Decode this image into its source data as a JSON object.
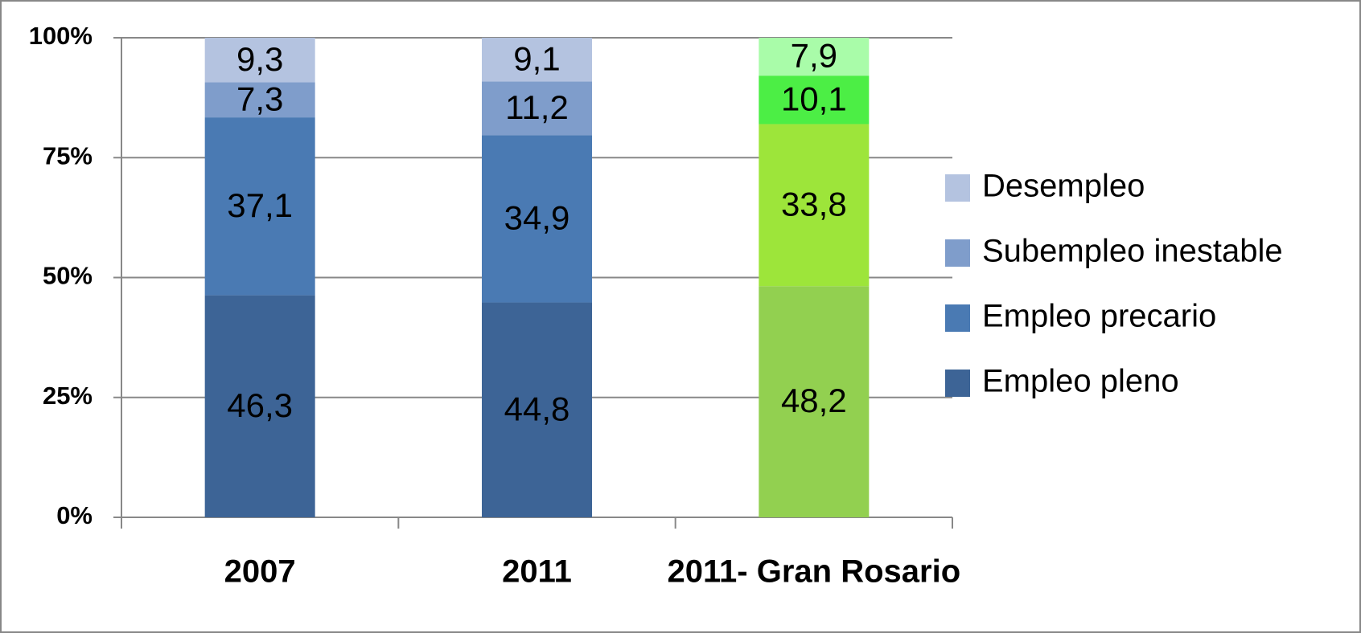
{
  "chart_data": {
    "type": "stacked_bar",
    "categories": [
      "2007",
      "2011",
      "2011- Gran Rosario"
    ],
    "series": [
      {
        "name": "Empleo pleno",
        "color": "#3d6496",
        "colors": [
          "#3d6496",
          "#3d6496",
          "#92d050"
        ],
        "values": [
          46.3,
          44.8,
          48.2
        ],
        "value_labels": [
          "46,3",
          "44,8",
          "48,2"
        ]
      },
      {
        "name": "Empleo precario",
        "color": "#4a7ab3",
        "colors": [
          "#4a7ab3",
          "#4a7ab3",
          "#9de53a"
        ],
        "values": [
          37.1,
          34.9,
          33.8
        ],
        "value_labels": [
          "37,1",
          "34,9",
          "33,8"
        ]
      },
      {
        "name": "Subempleo inestable",
        "color": "#7f9dcb",
        "colors": [
          "#7f9dcb",
          "#7f9dcb",
          "#4cee45"
        ],
        "values": [
          7.3,
          11.2,
          10.1
        ],
        "value_labels": [
          "7,3",
          "11,2",
          "10,1"
        ]
      },
      {
        "name": "Desempleo",
        "color": "#b4c3e0",
        "colors": [
          "#b4c3e0",
          "#b4c3e0",
          "#a9fca9"
        ],
        "values": [
          9.3,
          9.1,
          7.9
        ],
        "value_labels": [
          "9,3",
          "9,1",
          "7,9"
        ]
      }
    ],
    "ylim": [
      0,
      100
    ],
    "yticks": [
      {
        "value": 0,
        "label": "0%"
      },
      {
        "value": 25,
        "label": "25%"
      },
      {
        "value": 50,
        "label": "50%"
      },
      {
        "value": 75,
        "label": "75%"
      },
      {
        "value": 100,
        "label": "100%"
      }
    ],
    "grid": true,
    "legend": "right"
  }
}
